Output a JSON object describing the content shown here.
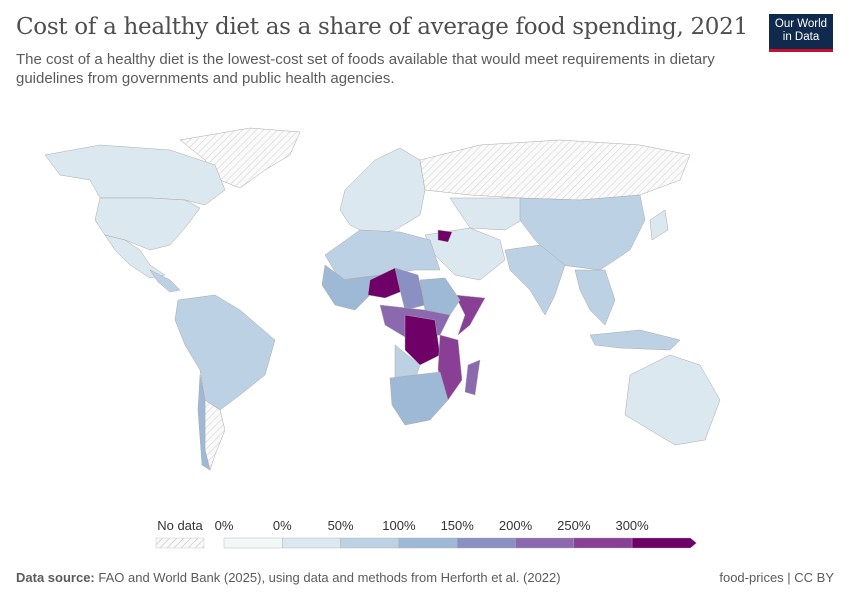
{
  "title": "Cost of a healthy diet as a share of average food spending, 2021",
  "subtitle": "The cost of a healthy diet is the lowest-cost set of foods available that would meet requirements in dietary guidelines from governments and public health agencies.",
  "logo": {
    "line1": "Our World",
    "line2": "in Data"
  },
  "legend": {
    "no_data_label": "No data",
    "bins": [
      {
        "label": "0%",
        "color": "#f2f8f8"
      },
      {
        "label": "0%",
        "color": "#dbe8f0"
      },
      {
        "label": "50%",
        "color": "#bdd1e4"
      },
      {
        "label": "100%",
        "color": "#9db9d6"
      },
      {
        "label": "150%",
        "color": "#8a90c1"
      },
      {
        "label": "200%",
        "color": "#8c69ae"
      },
      {
        "label": "250%",
        "color": "#8a3f97"
      },
      {
        "label": "300%",
        "color": "#6e0068"
      }
    ]
  },
  "footer": {
    "source_label": "Data source:",
    "source_text": "FAO and World Bank (2025), using data and methods from Herforth et al. (2022)",
    "right": "food-prices | CC BY"
  }
}
